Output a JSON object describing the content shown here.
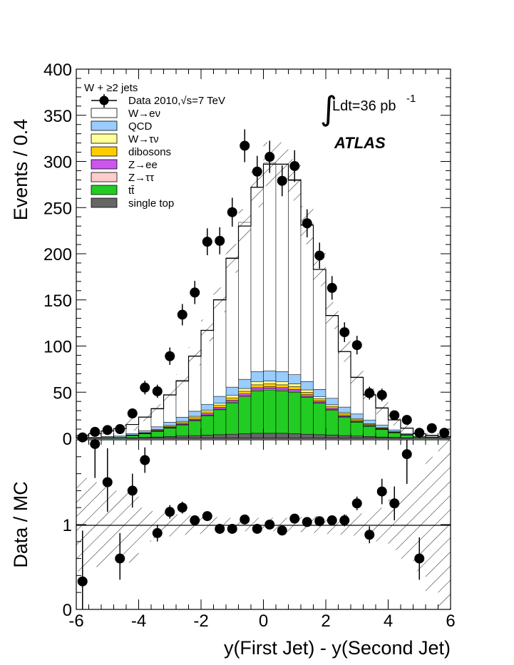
{
  "chart_data": [
    {
      "type": "bar",
      "stacked": true,
      "xlabel": "y(First Jet) - y(Second Jet)",
      "ylabel": "Events / 0.4",
      "xlim": [
        -6,
        6
      ],
      "ylim": [
        0,
        400
      ],
      "xticks": [
        "-6",
        "-4",
        "-2",
        "0",
        "2",
        "4",
        "6"
      ],
      "yticks": [
        "0",
        "50",
        "100",
        "150",
        "200",
        "250",
        "300",
        "350",
        "400"
      ],
      "bin_edges": [
        -6,
        -5.6,
        -5.2,
        -4.8,
        -4.4,
        -4.0,
        -3.6,
        -3.2,
        -2.8,
        -2.4,
        -2.0,
        -1.6,
        -1.2,
        -0.8,
        -0.4,
        0,
        0.4,
        0.8,
        1.2,
        1.6,
        2.0,
        2.4,
        2.8,
        3.2,
        3.6,
        4.0,
        4.4,
        4.8,
        5.2,
        5.6,
        6
      ],
      "title_lines": [
        "W + ≥2 jets"
      ],
      "lumi_label": "Ldt=36 pb",
      "lumi_exp": "-1",
      "experiment": "ATLAS",
      "data_label": "Data 2010,√s=7 TeV",
      "stack_series": [
        {
          "name": "single top",
          "color": "#666666",
          "values": [
            0,
            0,
            0,
            0,
            0.5,
            1,
            1.5,
            2,
            2.5,
            3,
            3.5,
            4,
            4.5,
            5,
            5.5,
            5.5,
            5.5,
            5,
            4.5,
            4,
            3.5,
            3,
            2.5,
            2,
            1.5,
            1,
            0.5,
            0,
            0,
            0
          ]
        },
        {
          "name": "tt̄",
          "color": "#22cc22",
          "values": [
            0.5,
            0.5,
            1,
            1.5,
            2.5,
            4,
            6,
            9,
            12,
            16,
            21,
            27,
            34,
            40,
            46,
            47,
            46,
            45,
            40,
            34,
            27,
            20,
            15,
            11,
            8,
            5,
            3,
            1.5,
            1,
            0.5
          ]
        },
        {
          "name": "Z→ττ",
          "color": "#ffcccc",
          "values": [
            0,
            0,
            0,
            0,
            0,
            0,
            0.2,
            0.3,
            0.4,
            0.5,
            0.6,
            0.7,
            0.8,
            0.9,
            1,
            1,
            1,
            0.9,
            0.8,
            0.7,
            0.6,
            0.5,
            0.4,
            0.3,
            0.2,
            0,
            0,
            0,
            0,
            0
          ]
        },
        {
          "name": "Z→ee",
          "color": "#cc55ee",
          "values": [
            0,
            0,
            0,
            0,
            0.2,
            0.3,
            0.5,
            0.7,
            1,
            1.2,
            1.5,
            1.8,
            2,
            2.2,
            2.4,
            2.4,
            2.4,
            2.2,
            2,
            1.8,
            1.5,
            1.2,
            1,
            0.7,
            0.5,
            0.3,
            0.2,
            0,
            0,
            0
          ]
        },
        {
          "name": "dibosons",
          "color": "#ffcc00",
          "values": [
            0,
            0,
            0,
            0,
            0.3,
            0.5,
            0.7,
            1,
            1.3,
            1.7,
            2,
            2.3,
            2.6,
            2.9,
            3.1,
            3.1,
            3.1,
            2.9,
            2.6,
            2.3,
            2,
            1.7,
            1.3,
            1,
            0.7,
            0.5,
            0.3,
            0,
            0,
            0
          ]
        },
        {
          "name": "W→τν",
          "color": "#ffff99",
          "values": [
            0,
            0,
            0,
            0,
            0.2,
            0.4,
            0.6,
            0.9,
            1.2,
            1.5,
            1.8,
            2.2,
            2.6,
            3,
            3.2,
            3.2,
            3.2,
            3,
            2.6,
            2.2,
            1.8,
            1.5,
            1.2,
            0.9,
            0.6,
            0.4,
            0.2,
            0,
            0,
            0
          ]
        },
        {
          "name": "QCD",
          "color": "#99ccff",
          "values": [
            0.5,
            0.5,
            1,
            1,
            1.5,
            2,
            3,
            3.5,
            4.5,
            5.5,
            6.5,
            7.5,
            9,
            10,
            11,
            11,
            11,
            10,
            9,
            8,
            7,
            6,
            5,
            4,
            3,
            2,
            1,
            0.5,
            0.5,
            0.5
          ]
        },
        {
          "name": "W→eν",
          "color": "#ffffff",
          "values": [
            2,
            4,
            6,
            8,
            10,
            15,
            20,
            30,
            40,
            60,
            80,
            105,
            140,
            170,
            200,
            225,
            225,
            210,
            170,
            130,
            90,
            60,
            40,
            28,
            18,
            11,
            6,
            3,
            2,
            1
          ]
        }
      ],
      "mc_total": [
        3,
        5,
        8,
        10.5,
        15,
        23,
        32,
        47,
        62,
        89,
        117,
        150,
        195,
        230,
        272,
        297,
        297,
        280,
        231,
        183,
        133,
        94,
        66,
        47,
        33,
        20,
        11,
        5,
        3,
        2
      ],
      "data_x": [
        -5.8,
        -5.4,
        -5.0,
        -4.6,
        -4.2,
        -3.8,
        -3.4,
        -3.0,
        -2.6,
        -2.2,
        -1.8,
        -1.4,
        -1.0,
        -0.6,
        -0.2,
        0.2,
        0.6,
        1.0,
        1.4,
        1.8,
        2.2,
        2.6,
        3.0,
        3.4,
        3.8,
        4.2,
        4.6,
        5.0,
        5.4,
        5.8
      ],
      "data_y": [
        1,
        7,
        9,
        10,
        27,
        55,
        51,
        89,
        134,
        158,
        213,
        214,
        245,
        317,
        289,
        305,
        279,
        295,
        233,
        198,
        163,
        115,
        101,
        49,
        47,
        25,
        20,
        6,
        11,
        6
      ]
    },
    {
      "type": "scatter",
      "ylabel": "Data / MC",
      "xlim": [
        -6,
        6
      ],
      "ylim": [
        0,
        2
      ],
      "yticks": [
        "0",
        "1"
      ],
      "reference_line": 1,
      "x": [
        -5.8,
        -5.4,
        -5.0,
        -4.6,
        -4.2,
        -3.8,
        -3.4,
        -3.0,
        -2.6,
        -2.2,
        -1.8,
        -1.4,
        -1.0,
        -0.6,
        -0.2,
        0.2,
        0.6,
        1.0,
        1.4,
        1.8,
        2.2,
        2.6,
        3.0,
        3.4,
        3.8,
        4.2,
        4.6,
        5.0,
        5.4,
        5.8
      ],
      "y": [
        0.33,
        1.95,
        1.5,
        0.6,
        1.4,
        1.76,
        0.9,
        1.15,
        1.2,
        1.05,
        1.1,
        0.95,
        0.95,
        1.06,
        0.95,
        1.0,
        0.93,
        1.07,
        1.03,
        1.04,
        1.05,
        1.05,
        1.25,
        0.88,
        1.39,
        1.25,
        1.83,
        0.6,
        null,
        null
      ],
      "yerr_lo": [
        0.33,
        0.4,
        0.35,
        0.25,
        0.2,
        0.15,
        0.1,
        0.08,
        0.07,
        0.06,
        0.05,
        0.05,
        0.05,
        0.05,
        0.05,
        0.05,
        0.05,
        0.05,
        0.05,
        0.05,
        0.06,
        0.07,
        0.08,
        0.1,
        0.15,
        0.2,
        0.35,
        0.25,
        0,
        0
      ],
      "yerr_hi": [
        0.6,
        0.45,
        0.4,
        0.3,
        0.2,
        0.15,
        0.1,
        0.08,
        0.07,
        0.06,
        0.05,
        0.05,
        0.05,
        0.05,
        0.05,
        0.05,
        0.05,
        0.05,
        0.05,
        0.05,
        0.06,
        0.07,
        0.08,
        0.1,
        0.15,
        0.2,
        0.35,
        0.25,
        0,
        0
      ],
      "band_half_width": [
        0.55,
        0.5,
        0.45,
        0.4,
        0.45,
        0.2,
        0.16,
        0.14,
        0.12,
        0.11,
        0.1,
        0.09,
        0.08,
        0.08,
        0.08,
        0.08,
        0.08,
        0.08,
        0.09,
        0.1,
        0.11,
        0.12,
        0.13,
        0.15,
        0.2,
        0.3,
        0.4,
        0.55,
        0.8,
        1.0
      ]
    }
  ]
}
